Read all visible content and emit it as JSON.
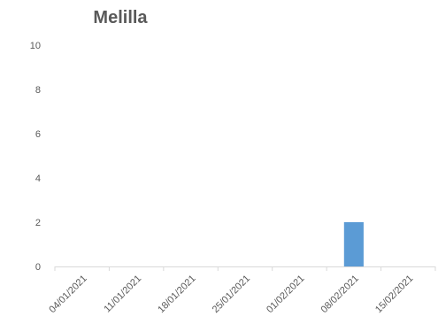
{
  "chart_data": {
    "type": "bar",
    "title": "Melilla",
    "xlabel": "",
    "ylabel": "",
    "categories": [
      "04/01/2021",
      "11/01/2021",
      "18/01/2021",
      "25/01/2021",
      "01/02/2021",
      "08/02/2021",
      "15/02/2021"
    ],
    "values": [
      0,
      0,
      0,
      0,
      0,
      2,
      0
    ],
    "ylim": [
      0,
      10
    ],
    "yticks": [
      0,
      2,
      4,
      6,
      8,
      10
    ],
    "grid": false,
    "legend": "none",
    "bar_color": "#5b9bd5"
  }
}
